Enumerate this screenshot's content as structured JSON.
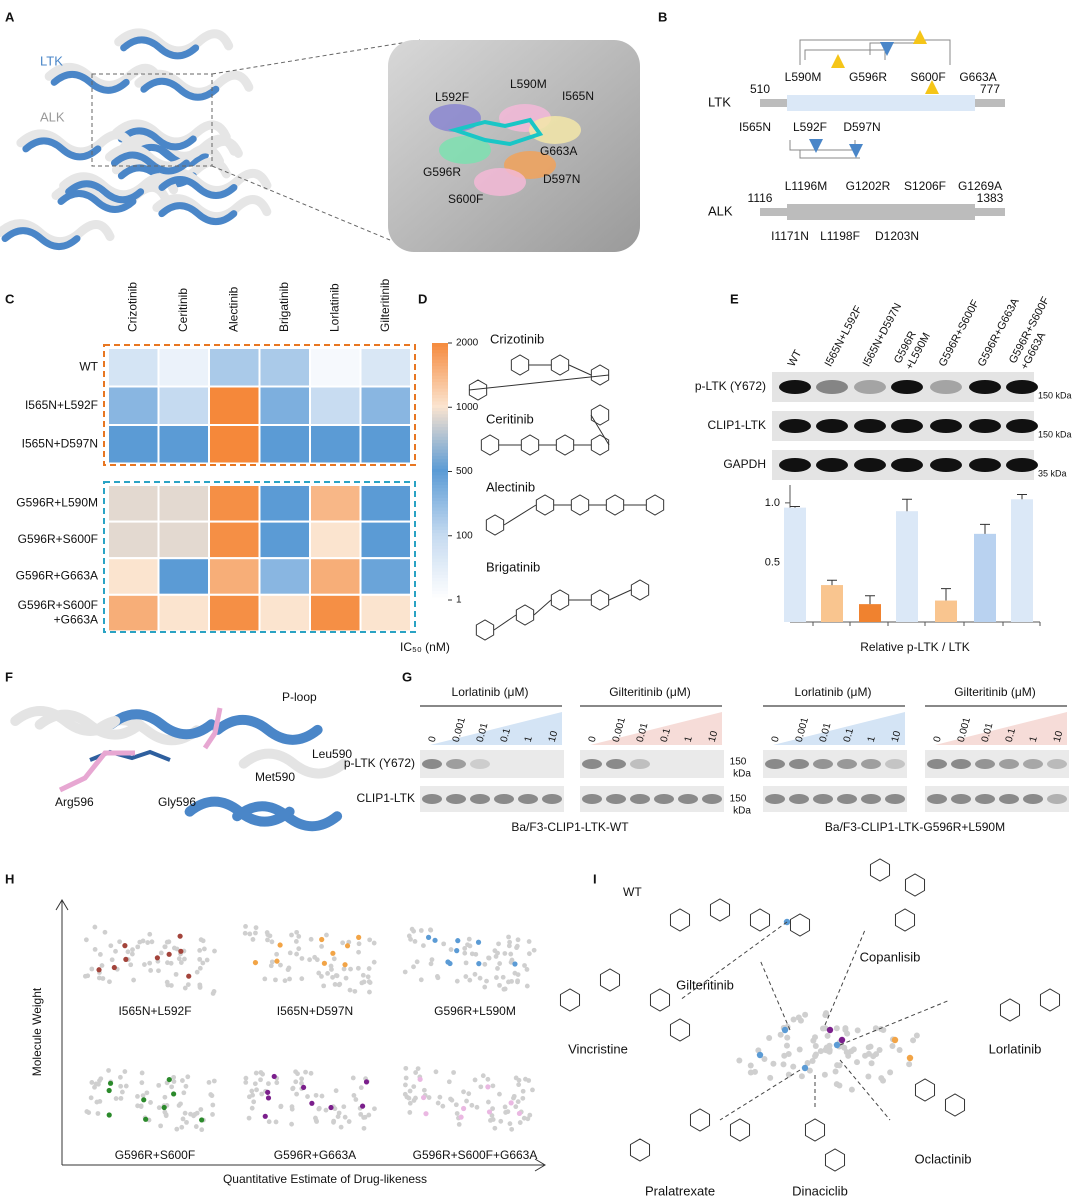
{
  "panels": {
    "A": {
      "letter": "A",
      "labels": [
        "LTK",
        "ALK"
      ],
      "mutations": [
        "L592F",
        "L590M",
        "I565N",
        "G663A",
        "G596R",
        "D597N",
        "S600F"
      ]
    },
    "B": {
      "letter": "B",
      "ltk": {
        "name": "LTK",
        "start": "510",
        "end": "777",
        "top_mutations": [
          "L590M",
          "G596R",
          "S600F",
          "G663A"
        ],
        "bottom_mutations": [
          "I565N",
          "L592F",
          "D597N"
        ]
      },
      "alk": {
        "name": "ALK",
        "start": "1116",
        "end": "1383",
        "top_mutations": [
          "L1196M",
          "G1202R",
          "S1206F",
          "G1269A"
        ],
        "bottom_mutations": [
          "I1171N",
          "L1198F",
          "D1203N"
        ]
      }
    },
    "C": {
      "letter": "C",
      "heatmap": {
        "columns": [
          "Crizotinib",
          "Ceritinib",
          "Alectinib",
          "Brigatinib",
          "Lorlatinib",
          "Gilteritinib"
        ],
        "rows": [
          "WT",
          "I565N+L592F",
          "I565N+D597N",
          "G596R+L590M",
          "G596R+S600F",
          "G596R+G663A",
          "G596R+S600F +G663A"
        ],
        "values": [
          [
            30,
            5,
            150,
            150,
            2,
            20
          ],
          [
            250,
            100,
            2000,
            300,
            80,
            250
          ],
          [
            500,
            500,
            2000,
            500,
            500,
            500
          ],
          [
            900,
            900,
            1900,
            500,
            1400,
            500
          ],
          [
            900,
            900,
            1900,
            500,
            1000,
            500
          ],
          [
            1000,
            500,
            1500,
            250,
            1500,
            400
          ],
          [
            1500,
            1000,
            1900,
            1000,
            1900,
            1000
          ]
        ],
        "colorbar": {
          "ticks": [
            1,
            100,
            500,
            1000,
            2000
          ],
          "colors": [
            "#ffffff",
            "#c5daf0",
            "#5b9bd5",
            "#fbe4cf",
            "#f5883a"
          ],
          "title": "IC₅₀ (nM)"
        }
      }
    },
    "D": {
      "letter": "D",
      "drugs": [
        "Crizotinib",
        "Ceritinib",
        "Alectinib",
        "Brigatinib"
      ]
    },
    "E": {
      "letter": "E",
      "lanes": [
        "WT",
        "I565N+L592F",
        "I565N+D597N",
        "G596R +L590M",
        "G596R+S600F",
        "G596R+G663A",
        "G596R+S600F +G663A"
      ],
      "blot_rows": [
        "p-LTK (Y672)",
        "CLIP1-LTK",
        "GAPDH"
      ],
      "markers": [
        "150 kDa",
        "150 kDa",
        "35 kDa"
      ],
      "chart": {
        "values": [
          0.96,
          0.31,
          0.15,
          0.93,
          0.18,
          0.74,
          1.03
        ],
        "errors": [
          0.01,
          0.04,
          0.07,
          0.1,
          0.1,
          0.08,
          0.04
        ],
        "colors": [
          "#dbe8f7",
          "#f9c58f",
          "#f0822f",
          "#dbe8f7",
          "#f9c58f",
          "#b9d2f0",
          "#dbe8f7"
        ],
        "ylim": [
          0,
          1.15
        ],
        "yticks": [
          0.5,
          {
            "value": 1,
            "label": "1.0"
          }
        ],
        "xlabel": "Relative p-LTK / LTK"
      }
    },
    "F": {
      "letter": "F",
      "labels": [
        "P-loop",
        "Leu590",
        "Met590",
        "Arg596",
        "Gly596"
      ]
    },
    "G": {
      "letter": "G",
      "groups": [
        {
          "drug": "Lorlatinib (μM)",
          "doses": [
            "0",
            "0.001",
            "0.01",
            "0.1",
            "1",
            "10"
          ]
        },
        {
          "drug": "Gilteritinib (μM)",
          "doses": [
            "0",
            "0.001",
            "0.01",
            "0.1",
            "1",
            "10"
          ]
        },
        {
          "drug": "Lorlatinib (μM)",
          "doses": [
            "0",
            "0.001",
            "0.01",
            "0.1",
            "1",
            "10"
          ]
        },
        {
          "drug": "Gilteritinib (μM)",
          "doses": [
            "0",
            "0.001",
            "0.01",
            "0.1",
            "1",
            "10"
          ]
        }
      ],
      "rows": [
        "p-LTK (Y672)",
        "CLIP1-LTK"
      ],
      "markers": [
        "150",
        "kDa",
        "150",
        "kDa"
      ],
      "cell_lines": [
        "Ba/F3-CLIP1-LTK-WT",
        "Ba/F3-CLIP1-LTK-G596R+L590M"
      ]
    },
    "H": {
      "letter": "H",
      "subplots": [
        {
          "name": "I565N+L592F",
          "color": "#a3443b"
        },
        {
          "name": "I565N+D597N",
          "color": "#f2a446"
        },
        {
          "name": "G596R+L590M",
          "color": "#5b9bd5"
        },
        {
          "name": "G596R+S600F",
          "color": "#2b8a2b"
        },
        {
          "name": "G596R+G663A",
          "color": "#7b1f8c"
        },
        {
          "name": "G596R+S600F+G663A",
          "color": "#eab8e2"
        }
      ],
      "ylabel": "Molecule Weight",
      "xlabel": "Quantitative Estimate of Drug-likeness"
    },
    "I": {
      "letter": "I",
      "label": "WT",
      "drugs": [
        "Gilteritinib",
        "Copanlisib",
        "Lorlatinib",
        "Vincristine",
        "Oclactinib",
        "Pralatrexate",
        "Dinaciclib"
      ]
    }
  }
}
